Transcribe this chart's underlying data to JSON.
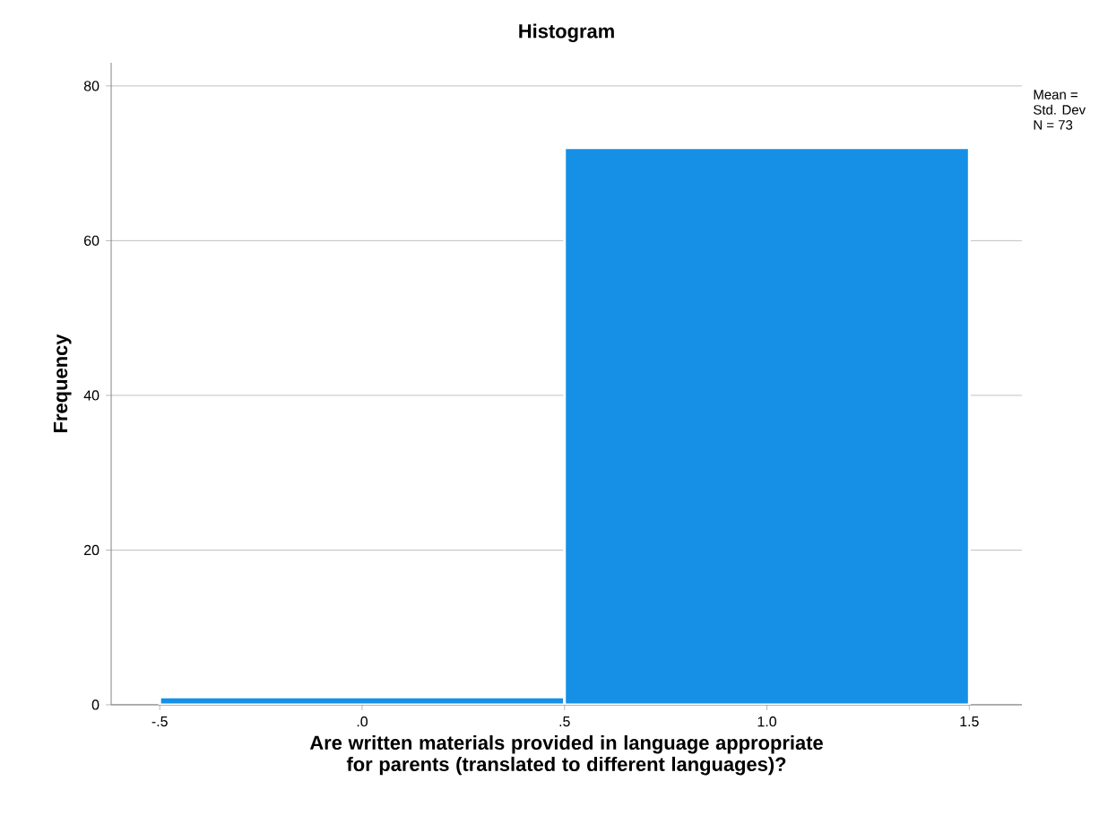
{
  "chart_data": {
    "type": "histogram",
    "title": "Histogram",
    "xlabel": "Are written materials provided in language appropriate for parents (translated to different languages)?",
    "ylabel": "Frequency",
    "bins": [
      -0.5,
      0.5,
      1.5
    ],
    "values": [
      1,
      72
    ],
    "color": "#1590e6",
    "xlim": [
      -0.62,
      1.63
    ],
    "ylim": [
      0,
      83
    ],
    "xticks": [
      {
        "value": -0.5,
        "label": "-.5"
      },
      {
        "value": 0,
        "label": ".0"
      },
      {
        "value": 0.5,
        "label": ".5"
      },
      {
        "value": 1,
        "label": "1.0"
      },
      {
        "value": 1.5,
        "label": "1.5"
      }
    ],
    "yticks": [
      0,
      20,
      40,
      60,
      80
    ],
    "grid": "y",
    "annotations": [
      "Mean =",
      "Std. Dev",
      "N = 73"
    ]
  }
}
